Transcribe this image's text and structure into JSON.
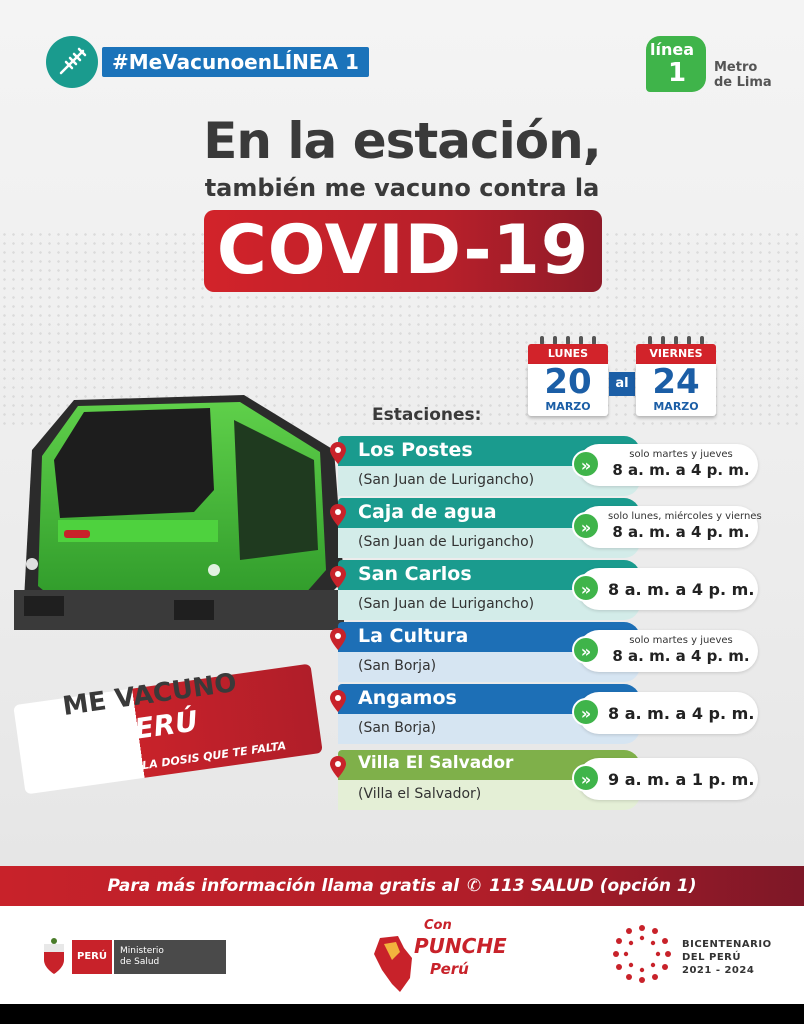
{
  "hashtag": "#MeVacunoenLÍNEA 1",
  "logo": {
    "linea": "línea",
    "number": "1",
    "sub1": "Metro",
    "sub2": "de Lima"
  },
  "headline": {
    "line1": "En la estación,",
    "line2": "también me vacuno contra la",
    "covid": "COVID-19"
  },
  "dates": {
    "start": {
      "weekday": "LUNES",
      "day": "20",
      "month": "MARZO"
    },
    "connector": "al",
    "end": {
      "weekday": "VIERNES",
      "day": "24",
      "month": "MARZO"
    }
  },
  "stations_title": "Estaciones:",
  "stations": [
    {
      "name": "Los Postes",
      "district": "(San Juan de Lurigancho)",
      "note": "solo martes y jueves",
      "hours": "8 a. m. a 4 p. m.",
      "color": "#1a9b8e",
      "light": "#d3ece9"
    },
    {
      "name": "Caja de agua",
      "district": "(San Juan de Lurigancho)",
      "note": "solo lunes, miércoles y viernes",
      "hours": "8 a. m. a 4 p. m.",
      "color": "#1a9b8e",
      "light": "#d3ece9"
    },
    {
      "name": "San Carlos",
      "district": "(San Juan de Lurigancho)",
      "note": "",
      "hours": "8 a. m. a 4 p. m.",
      "color": "#1a9b8e",
      "light": "#d3ece9"
    },
    {
      "name": "La Cultura",
      "district": "(San Borja)",
      "note": "solo martes y jueves",
      "hours": "8 a. m. a 4 p. m.",
      "color": "#1d6fb6",
      "light": "#d6e5f2"
    },
    {
      "name": "Angamos",
      "district": "(San Borja)",
      "note": "",
      "hours": "8 a. m. a 4 p. m.",
      "color": "#1d6fb6",
      "light": "#d6e5f2"
    },
    {
      "name": "Villa El Salvador",
      "district": "(Villa el Salvador)",
      "note": "",
      "hours": "9 a. m. a 1 p. m.",
      "color": "#7fb04a",
      "light": "#e4efd6"
    }
  ],
  "campaign": {
    "line1": "ME VACUNO",
    "line2": "PERÚ",
    "line3": "COMPLETA LA DOSIS QUE TE FALTA"
  },
  "info": {
    "text": "Para más información llama gratis al",
    "number": "113 SALUD",
    "option": "(opción 1)"
  },
  "footer": {
    "peru": "PERÚ",
    "ministry1": "Ministerio",
    "ministry2": "de Salud",
    "punche_con": "Con",
    "punche_main": "PUNCHE",
    "punche_peru": "Perú",
    "bicen1": "BICENTENARIO",
    "bicen2": "DEL PERÚ",
    "bicen3": "2021 - 2024"
  },
  "colors": {
    "red": "#c8222a",
    "teal": "#1a9b8e",
    "blue": "#1d6fb6",
    "green": "#3fb44a"
  }
}
